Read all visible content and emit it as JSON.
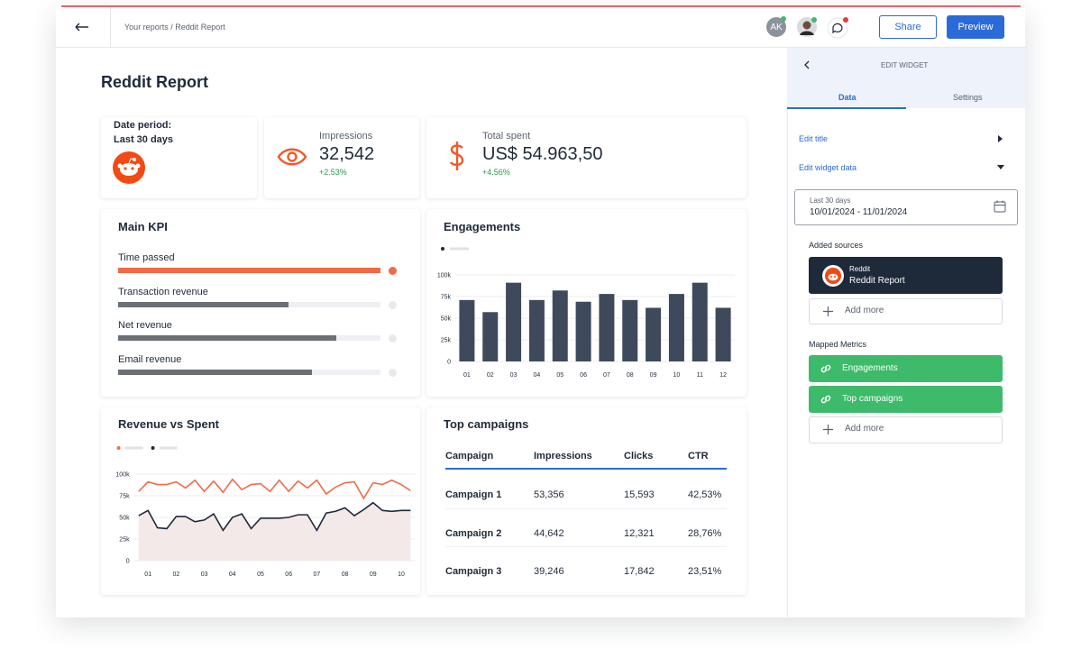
{
  "header": {
    "breadcrumb": "Your reports / Reddit Report",
    "avatar": "AK",
    "share": "Share",
    "preview": "Preview"
  },
  "report_title": "Reddit Report",
  "date_card": {
    "label": "Date period:",
    "value": "Last 30 days"
  },
  "stats": [
    {
      "label": "Impressions",
      "value": "32,542",
      "change": "+2.53%"
    },
    {
      "label": "Total spent",
      "value": "US$ 54.963,50",
      "change": "+4.56%"
    }
  ],
  "kpi": {
    "title": "Main KPI",
    "items": [
      {
        "label": "Time passed",
        "value": 100
      },
      {
        "label": "Transaction revenue",
        "value": 65
      },
      {
        "label": "Net revenue",
        "value": 83
      },
      {
        "label": "Email revenue",
        "value": 74
      }
    ]
  },
  "chart_data": [
    {
      "type": "bar",
      "title": "Engagements",
      "categories": [
        "01",
        "02",
        "03",
        "04",
        "05",
        "06",
        "07",
        "08",
        "09",
        "10",
        "11",
        "12"
      ],
      "values": [
        71000,
        57000,
        91000,
        71000,
        82000,
        69000,
        78000,
        71000,
        62000,
        78000,
        91000,
        62000
      ],
      "color": "#3e4a5c",
      "ylim": [
        0,
        100000
      ],
      "yticks": [
        0,
        {
          "value": 25000,
          "label": "25k"
        },
        {
          "value": 50000,
          "label": "50k"
        },
        {
          "value": 75000,
          "label": "75k"
        },
        {
          "value": 100000,
          "label": "100k"
        }
      ],
      "grid": true
    },
    {
      "type": "line",
      "title": "Revenue vs Spent",
      "categories": [
        null,
        "01",
        null,
        null,
        "02",
        null,
        null,
        "03",
        null,
        null,
        "04",
        null,
        null,
        "05",
        null,
        null,
        "06",
        null,
        null,
        "07",
        null,
        null,
        "08",
        null,
        null,
        "09",
        null,
        null,
        "10",
        null
      ],
      "series": [
        {
          "color": "#f26a45",
          "values": [
            80000,
            91000,
            88000,
            88000,
            91000,
            84000,
            93000,
            80000,
            92000,
            79000,
            94000,
            82000,
            88000,
            89000,
            80000,
            93000,
            80000,
            92000,
            84000,
            93000,
            77000,
            85000,
            90000,
            91000,
            72000,
            90000,
            88000,
            93000,
            88000,
            81000
          ]
        },
        {
          "color": "#1e2a3a",
          "fill": "#f4e9e9",
          "values": [
            52000,
            58000,
            38000,
            37000,
            51000,
            51000,
            45000,
            47000,
            54000,
            35000,
            50000,
            54000,
            37000,
            49000,
            49000,
            49000,
            50000,
            53000,
            53000,
            35000,
            55000,
            57000,
            61000,
            52000,
            59000,
            67000,
            58000,
            57000,
            58000,
            58000
          ]
        }
      ],
      "ylim": [
        0,
        100000
      ],
      "yticks": [
        0,
        {
          "value": 25000,
          "label": "25k"
        },
        {
          "value": 50000,
          "label": "50k"
        },
        {
          "value": 75000,
          "label": "75k"
        },
        {
          "value": 100000,
          "label": "100k"
        }
      ],
      "grid": true
    }
  ],
  "table": {
    "title": "Top campaigns",
    "header": [
      "Campaign",
      "Impressions",
      "Clicks",
      "CTR"
    ],
    "rows": [
      [
        "Campaign 1",
        "53,356",
        "15,593",
        "42,53%"
      ],
      [
        "Campaign 2",
        "44,642",
        "12,321",
        "28,76%"
      ],
      [
        "Campaign 3",
        "39,246",
        "17,842",
        "23,51%"
      ]
    ]
  },
  "panel": {
    "title": "EDIT WIDGET",
    "tabs": [
      "Data",
      "Settings"
    ],
    "edit_title": "Edit title",
    "edit_data": "Edit widget data",
    "date_label": "Last 30 days",
    "date_range": "10/01/2024 - 11/01/2024",
    "sources_title": "Added sources",
    "source_type": "Reddit",
    "source_name": "Reddit Report",
    "add_more": "Add more",
    "metrics_title": "Mapped Metrics",
    "metrics": [
      "Engagements",
      "Top campaigns"
    ]
  }
}
